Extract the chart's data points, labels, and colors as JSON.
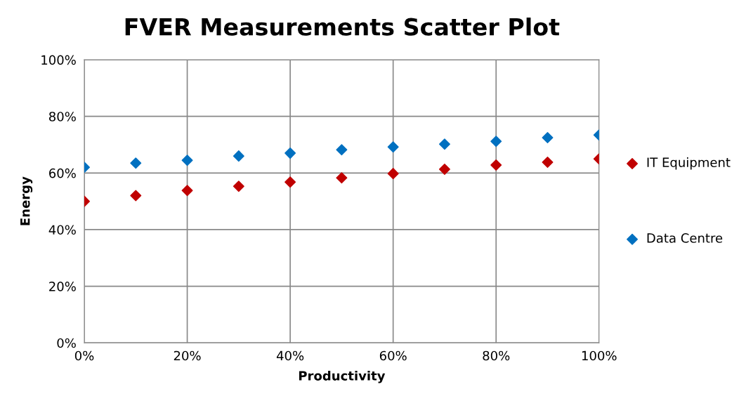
{
  "chart_data": {
    "type": "scatter",
    "title": "FVER Measurements Scatter Plot",
    "xlabel": "Productivity",
    "ylabel": "Energy",
    "x": [
      0,
      10,
      20,
      30,
      40,
      50,
      60,
      70,
      80,
      90,
      100
    ],
    "series": [
      {
        "name": "IT Equipment",
        "color": "#c00000",
        "values": [
          50,
          52,
          53.8,
          55.3,
          56.8,
          58.3,
          59.8,
          61.3,
          62.8,
          63.8,
          65
        ]
      },
      {
        "name": "Data Centre",
        "color": "#0070c0",
        "values": [
          62,
          63.5,
          64.5,
          66,
          67,
          68.2,
          69.2,
          70.2,
          71.2,
          72.5,
          73.4
        ]
      }
    ],
    "xlim": [
      0,
      100
    ],
    "ylim": [
      0,
      100
    ],
    "xticks": [
      {
        "value": 0,
        "label": "0%"
      },
      {
        "value": 20,
        "label": "20%"
      },
      {
        "value": 40,
        "label": "40%"
      },
      {
        "value": 60,
        "label": "60%"
      },
      {
        "value": 80,
        "label": "80%"
      },
      {
        "value": 100,
        "label": "100%"
      }
    ],
    "yticks": [
      {
        "value": 0,
        "label": "0%"
      },
      {
        "value": 20,
        "label": "20%"
      },
      {
        "value": 40,
        "label": "40%"
      },
      {
        "value": 60,
        "label": "60%"
      },
      {
        "value": 80,
        "label": "80%"
      },
      {
        "value": 100,
        "label": "100%"
      }
    ],
    "grid": true,
    "legend": "right",
    "marker": "diamond"
  }
}
